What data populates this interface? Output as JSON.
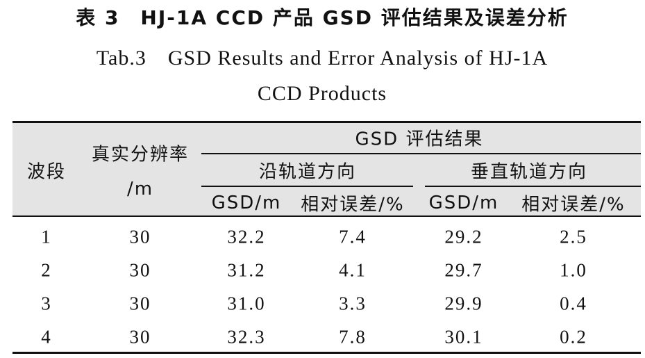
{
  "header": {
    "title_cn": "表 3　HJ-1A CCD 产品 GSD 评估结果及误差分析",
    "title_en": [
      "Tab.3　GSD Results and Error Analysis of HJ-1A",
      "CCD Products"
    ]
  },
  "table": {
    "col_band": "波段",
    "col_res": [
      "真实分辨率",
      "/m"
    ],
    "group": "GSD 评估结果",
    "subgroups": [
      "沿轨道方向",
      "垂直轨道方向"
    ],
    "subcols": [
      "GSD/m",
      "相对误差/%",
      "GSD/m",
      "相对误差/%"
    ],
    "rows": [
      [
        "1",
        "30",
        "32.2",
        "7.4",
        "29.2",
        "2.5"
      ],
      [
        "2",
        "30",
        "31.2",
        "4.1",
        "29.7",
        "1.0"
      ],
      [
        "3",
        "30",
        "31.0",
        "3.3",
        "29.9",
        "0.4"
      ],
      [
        "4",
        "30",
        "32.3",
        "7.8",
        "30.1",
        "0.2"
      ]
    ]
  }
}
